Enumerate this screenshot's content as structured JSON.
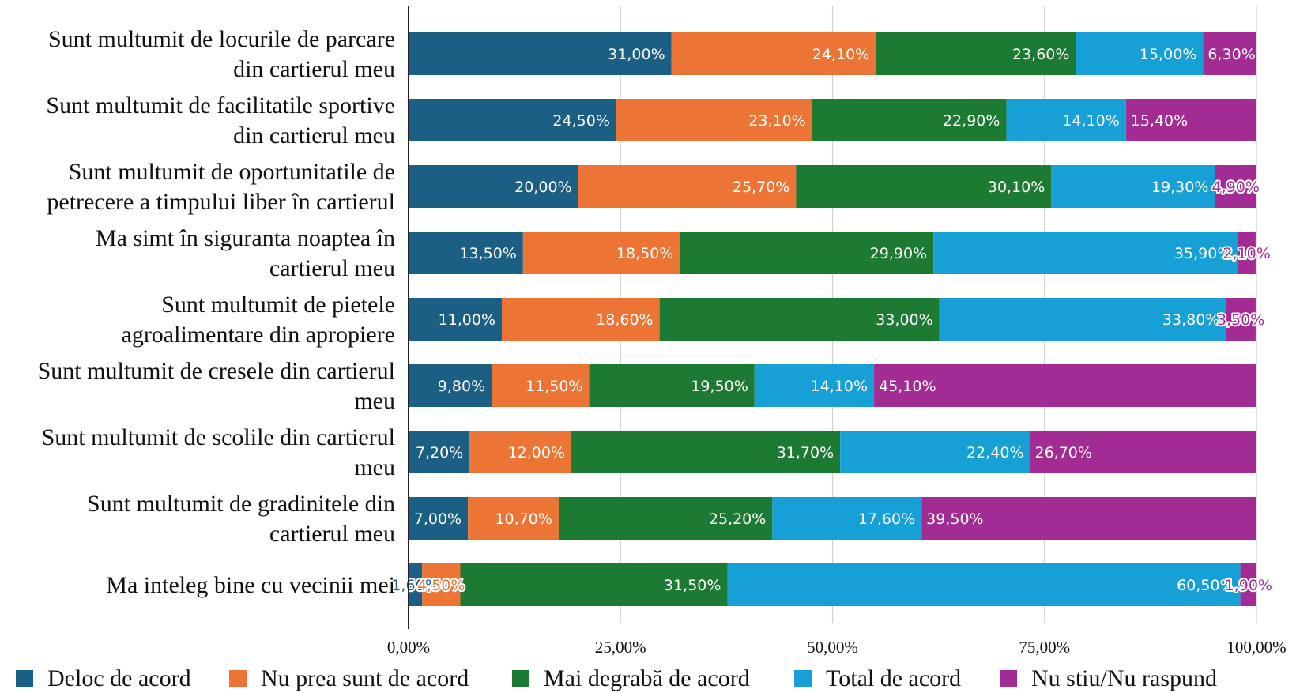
{
  "chart_data": {
    "type": "bar",
    "orientation": "horizontal",
    "stacked": true,
    "categories": [
      [
        "Sunt multumit de locurile de parcare",
        "din cartierul meu"
      ],
      [
        "Sunt multumit de facilitatile sportive",
        "din cartierul meu"
      ],
      [
        "Sunt multumit de oportunitatile de",
        "petrecere a timpului liber în cartierul"
      ],
      [
        "Ma simt în siguranta noaptea în",
        "cartierul meu"
      ],
      [
        "Sunt multumit de pietele",
        "agroalimentare din apropiere"
      ],
      [
        "Sunt multumit de cresele din cartierul",
        "meu"
      ],
      [
        "Sunt multumit de scolile din cartierul",
        "meu"
      ],
      [
        "Sunt multumit de gradinitele din",
        "cartierul meu"
      ],
      [
        "Ma inteleg bine cu vecinii mei"
      ]
    ],
    "series": [
      {
        "name": "Deloc de acord",
        "color": "#1b5f84",
        "values": [
          31.0,
          24.5,
          20.0,
          13.5,
          11.0,
          9.8,
          7.2,
          7.0,
          1.6
        ],
        "labels": [
          "31,00%",
          "24,50%",
          "20,00%",
          "13,50%",
          "11,00%",
          "9,80%",
          "7,20%",
          "7,00%",
          "1,60%"
        ]
      },
      {
        "name": "Nu prea sunt de acord",
        "color": "#ec7535",
        "values": [
          24.1,
          23.1,
          25.7,
          18.5,
          18.6,
          11.5,
          12.0,
          10.7,
          4.5
        ],
        "labels": [
          "24,10%",
          "23,10%",
          "25,70%",
          "18,50%",
          "18,60%",
          "11,50%",
          "12,00%",
          "10,70%",
          "4,50%"
        ]
      },
      {
        "name": "Mai degrabă de acord",
        "color": "#1d7a32",
        "values": [
          23.6,
          22.9,
          30.1,
          29.9,
          33.0,
          19.5,
          31.7,
          25.2,
          31.5
        ],
        "labels": [
          "23,60%",
          "22,90%",
          "30,10%",
          "29,90%",
          "33,00%",
          "19,50%",
          "31,70%",
          "25,20%",
          "31,50%"
        ]
      },
      {
        "name": "Total de acord",
        "color": "#16a0d6",
        "values": [
          15.0,
          14.1,
          19.3,
          35.9,
          33.8,
          14.1,
          22.4,
          17.6,
          60.5
        ],
        "labels": [
          "15,00%",
          "14,10%",
          "19,30%",
          "35,90%",
          "33,80%",
          "14,10%",
          "22,40%",
          "17,60%",
          "60,50%"
        ]
      },
      {
        "name": "Nu stiu/Nu raspund",
        "color": "#a22c93",
        "values": [
          6.3,
          15.4,
          4.9,
          2.1,
          3.5,
          45.1,
          26.7,
          39.5,
          1.9
        ],
        "labels": [
          "6,30%",
          "15,40%",
          "4,90%",
          "2,10%",
          "3,50%",
          "45,10%",
          "26,70%",
          "39,50%",
          "1,90%"
        ]
      }
    ],
    "xlim": [
      0,
      100
    ],
    "x_ticks": [
      "0,00%",
      "25,00%",
      "50,00%",
      "75,00%",
      "100,00%"
    ],
    "grid": true,
    "legend_position": "bottom",
    "title": "",
    "xlabel": "",
    "ylabel": ""
  }
}
